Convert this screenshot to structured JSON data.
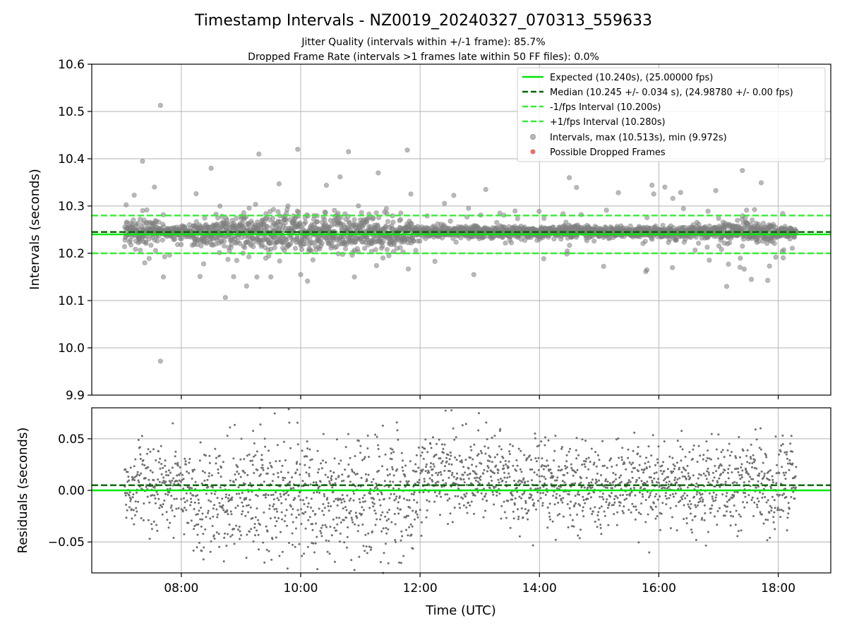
{
  "chart_data": {
    "title": "Timestamp Intervals - NZ0019_20240327_070313_559633",
    "subtitles": [
      "Jitter Quality (intervals within +/-1 frame): 85.7%",
      "Dropped Frame Rate (intervals >1 frames late within 50 FF files): 0.0%"
    ],
    "xlabel": "Time (UTC)",
    "x_range_hours": [
      6.5,
      18.88
    ],
    "x_ticks": [
      {
        "value": 8,
        "label": "08:00"
      },
      {
        "value": 10,
        "label": "10:00"
      },
      {
        "value": 12,
        "label": "12:00"
      },
      {
        "value": 14,
        "label": "14:00"
      },
      {
        "value": 16,
        "label": "16:00"
      },
      {
        "value": 18,
        "label": "18:00"
      }
    ],
    "data_time_range_hours": [
      7.05,
      18.3
    ],
    "colors": {
      "expected": "#00e600",
      "median": "#006400",
      "interval_bounds": "#33ee33",
      "points": "#808080",
      "dropped": "#e8483e",
      "grid": "#b0b0b0"
    },
    "top_panel": {
      "type": "scatter",
      "ylabel": "Intervals (seconds)",
      "ylim": [
        9.9,
        10.6
      ],
      "y_ticks": [
        "9.9",
        "10.0",
        "10.1",
        "10.2",
        "10.3",
        "10.4",
        "10.5",
        "10.6"
      ],
      "reference_lines": {
        "expected": 10.24,
        "median": 10.245,
        "minus_one_frame": 10.2,
        "plus_one_frame": 10.28
      },
      "intervals_max": 10.513,
      "intervals_min": 9.972,
      "outliers": [
        [
          7.65,
          10.513
        ],
        [
          7.65,
          9.972
        ],
        [
          7.55,
          10.34
        ],
        [
          7.35,
          10.395
        ],
        [
          8.5,
          10.38
        ],
        [
          9.3,
          10.41
        ],
        [
          9.95,
          10.42
        ],
        [
          10.8,
          10.415
        ],
        [
          11.3,
          10.37
        ],
        [
          13.1,
          10.335
        ],
        [
          14.5,
          10.36
        ],
        [
          16.1,
          10.34
        ],
        [
          17.4,
          10.375
        ],
        [
          7.7,
          10.15
        ],
        [
          9.5,
          10.15
        ],
        [
          10.0,
          10.155
        ],
        [
          10.9,
          10.15
        ],
        [
          12.9,
          10.155
        ],
        [
          17.55,
          10.145
        ],
        [
          15.8,
          10.165
        ]
      ],
      "legend": [
        "Expected (10.240s), (25.00000 fps)",
        "Median (10.245 +/- 0.034 s), (24.98780 +/- 0.00 fps)",
        "-1/fps Interval (10.200s)",
        "+1/fps Interval (10.280s)",
        "Intervals, max (10.513s), min (9.972s)",
        "Possible Dropped Frames"
      ]
    },
    "bottom_panel": {
      "type": "scatter",
      "ylabel": "Residuals (seconds)",
      "ylim": [
        -0.08,
        0.08
      ],
      "y_ticks": [
        {
          "value": 0.05,
          "label": "0.05"
        },
        {
          "value": 0.0,
          "label": "0.00"
        },
        {
          "value": -0.05,
          "label": "−0.05"
        }
      ],
      "reference_lines": {
        "expected": 0.0,
        "median": 0.005
      }
    }
  }
}
